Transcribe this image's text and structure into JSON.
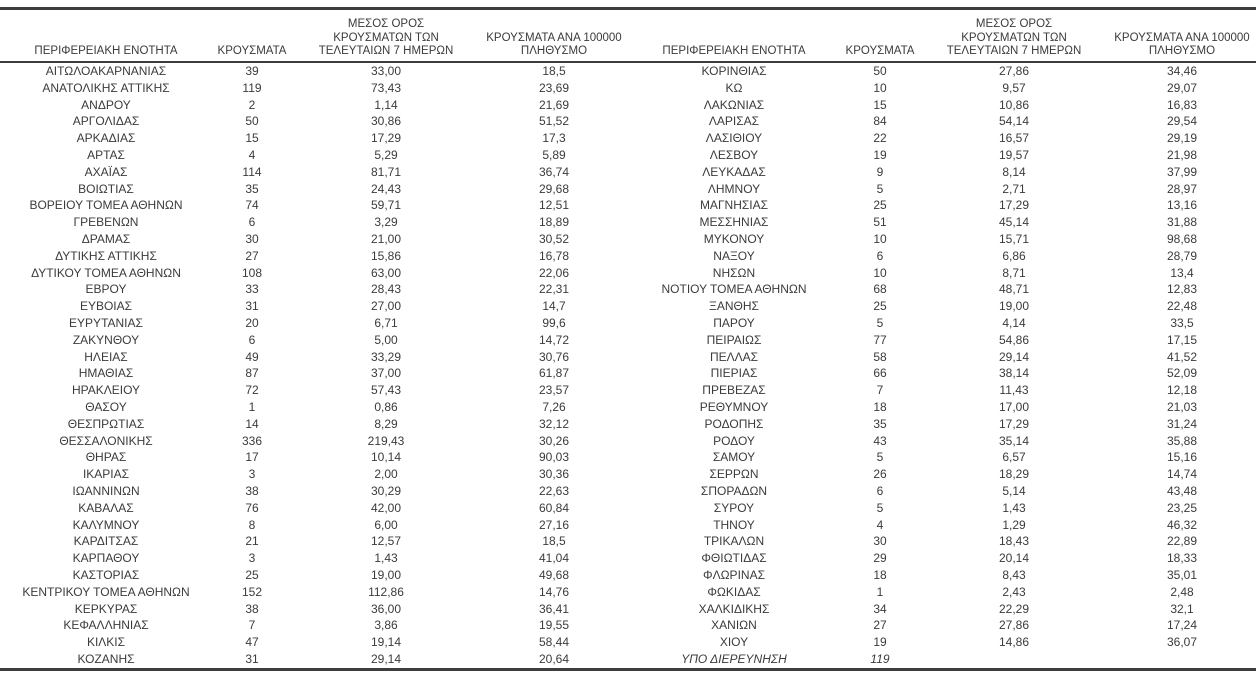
{
  "table": {
    "col_headers": [
      "ΠΕΡΙΦΕΡΕΙΑΚΗ ΕΝΟΤΗΤΑ",
      "ΚΡΟΥΣΜΑΤΑ",
      "ΜΕΣΟΣ ΟΡΟΣ\nΚΡΟΥΣΜΑΤΩΝ ΤΩΝ\nΤΕΛΕΥΤΑΙΩΝ 7 ΗΜΕΡΩΝ",
      "ΚΡΟΥΣΜΑΤΑ ΑΝΑ 100000\nΠΛΗΘΥΣΜΟ"
    ],
    "italic_row_label": "ΥΠΟ ΔΙΕΡΕΥΝΗΣΗ",
    "text_color": "#3b3b3b",
    "border_color": "#3d3d3d",
    "left_rows": [
      [
        "ΑΙΤΩΛΟΑΚΑΡΝΑΝΙΑΣ",
        "39",
        "33,00",
        "18,5"
      ],
      [
        "ΑΝΑΤΟΛΙΚΗΣ ΑΤΤΙΚΗΣ",
        "119",
        "73,43",
        "23,69"
      ],
      [
        "ΑΝΔΡΟΥ",
        "2",
        "1,14",
        "21,69"
      ],
      [
        "ΑΡΓΟΛΙΔΑΣ",
        "50",
        "30,86",
        "51,52"
      ],
      [
        "ΑΡΚΑΔΙΑΣ",
        "15",
        "17,29",
        "17,3"
      ],
      [
        "ΑΡΤΑΣ",
        "4",
        "5,29",
        "5,89"
      ],
      [
        "ΑΧΑΪΑΣ",
        "114",
        "81,71",
        "36,74"
      ],
      [
        "ΒΟΙΩΤΙΑΣ",
        "35",
        "24,43",
        "29,68"
      ],
      [
        "ΒΟΡΕΙΟΥ ΤΟΜΕΑ ΑΘΗΝΩΝ",
        "74",
        "59,71",
        "12,51"
      ],
      [
        "ΓΡΕΒΕΝΩΝ",
        "6",
        "3,29",
        "18,89"
      ],
      [
        "ΔΡΑΜΑΣ",
        "30",
        "21,00",
        "30,52"
      ],
      [
        "ΔΥΤΙΚΗΣ ΑΤΤΙΚΗΣ",
        "27",
        "15,86",
        "16,78"
      ],
      [
        "ΔΥΤΙΚΟΥ ΤΟΜΕΑ ΑΘΗΝΩΝ",
        "108",
        "63,00",
        "22,06"
      ],
      [
        "ΕΒΡΟΥ",
        "33",
        "28,43",
        "22,31"
      ],
      [
        "ΕΥΒΟΙΑΣ",
        "31",
        "27,00",
        "14,7"
      ],
      [
        "ΕΥΡΥΤΑΝΙΑΣ",
        "20",
        "6,71",
        "99,6"
      ],
      [
        "ΖΑΚΥΝΘΟΥ",
        "6",
        "5,00",
        "14,72"
      ],
      [
        "ΗΛΕΙΑΣ",
        "49",
        "33,29",
        "30,76"
      ],
      [
        "ΗΜΑΘΙΑΣ",
        "87",
        "37,00",
        "61,87"
      ],
      [
        "ΗΡΑΚΛΕΙΟΥ",
        "72",
        "57,43",
        "23,57"
      ],
      [
        "ΘΑΣΟΥ",
        "1",
        "0,86",
        "7,26"
      ],
      [
        "ΘΕΣΠΡΩΤΙΑΣ",
        "14",
        "8,29",
        "32,12"
      ],
      [
        "ΘΕΣΣΑΛΟΝΙΚΗΣ",
        "336",
        "219,43",
        "30,26"
      ],
      [
        "ΘΗΡΑΣ",
        "17",
        "10,14",
        "90,03"
      ],
      [
        "ΙΚΑΡΙΑΣ",
        "3",
        "2,00",
        "30,36"
      ],
      [
        "ΙΩΑΝΝΙΝΩΝ",
        "38",
        "30,29",
        "22,63"
      ],
      [
        "ΚΑΒΑΛΑΣ",
        "76",
        "42,00",
        "60,84"
      ],
      [
        "ΚΑΛΥΜΝΟΥ",
        "8",
        "6,00",
        "27,16"
      ],
      [
        "ΚΑΡΔΙΤΣΑΣ",
        "21",
        "12,57",
        "18,5"
      ],
      [
        "ΚΑΡΠΑΘΟΥ",
        "3",
        "1,43",
        "41,04"
      ],
      [
        "ΚΑΣΤΟΡΙΑΣ",
        "25",
        "19,00",
        "49,68"
      ],
      [
        "ΚΕΝΤΡΙΚΟΥ ΤΟΜΕΑ ΑΘΗΝΩΝ",
        "152",
        "112,86",
        "14,76"
      ],
      [
        "ΚΕΡΚΥΡΑΣ",
        "38",
        "36,00",
        "36,41"
      ],
      [
        "ΚΕΦΑΛΛΗΝΙΑΣ",
        "7",
        "3,86",
        "19,55"
      ],
      [
        "ΚΙΛΚΙΣ",
        "47",
        "19,14",
        "58,44"
      ],
      [
        "ΚΟΖΑΝΗΣ",
        "31",
        "29,14",
        "20,64"
      ]
    ],
    "right_rows": [
      [
        "ΚΟΡΙΝΘΙΑΣ",
        "50",
        "27,86",
        "34,46"
      ],
      [
        "ΚΩ",
        "10",
        "9,57",
        "29,07"
      ],
      [
        "ΛΑΚΩΝΙΑΣ",
        "15",
        "10,86",
        "16,83"
      ],
      [
        "ΛΑΡΙΣΑΣ",
        "84",
        "54,14",
        "29,54"
      ],
      [
        "ΛΑΣΙΘΙΟΥ",
        "22",
        "16,57",
        "29,19"
      ],
      [
        "ΛΕΣΒΟΥ",
        "19",
        "19,57",
        "21,98"
      ],
      [
        "ΛΕΥΚΑΔΑΣ",
        "9",
        "8,14",
        "37,99"
      ],
      [
        "ΛΗΜΝΟΥ",
        "5",
        "2,71",
        "28,97"
      ],
      [
        "ΜΑΓΝΗΣΙΑΣ",
        "25",
        "17,29",
        "13,16"
      ],
      [
        "ΜΕΣΣΗΝΙΑΣ",
        "51",
        "45,14",
        "31,88"
      ],
      [
        "ΜΥΚΟΝΟΥ",
        "10",
        "15,71",
        "98,68"
      ],
      [
        "ΝΑΞΟΥ",
        "6",
        "6,86",
        "28,79"
      ],
      [
        "ΝΗΣΩΝ",
        "10",
        "8,71",
        "13,4"
      ],
      [
        "ΝΟΤΙΟΥ ΤΟΜΕΑ ΑΘΗΝΩΝ",
        "68",
        "48,71",
        "12,83"
      ],
      [
        "ΞΑΝΘΗΣ",
        "25",
        "19,00",
        "22,48"
      ],
      [
        "ΠΑΡΟΥ",
        "5",
        "4,14",
        "33,5"
      ],
      [
        "ΠΕΙΡΑΙΩΣ",
        "77",
        "54,86",
        "17,15"
      ],
      [
        "ΠΕΛΛΑΣ",
        "58",
        "29,14",
        "41,52"
      ],
      [
        "ΠΙΕΡΙΑΣ",
        "66",
        "38,14",
        "52,09"
      ],
      [
        "ΠΡΕΒΕΖΑΣ",
        "7",
        "11,43",
        "12,18"
      ],
      [
        "ΡΕΘΥΜΝΟΥ",
        "18",
        "17,00",
        "21,03"
      ],
      [
        "ΡΟΔΟΠΗΣ",
        "35",
        "17,29",
        "31,24"
      ],
      [
        "ΡΟΔΟΥ",
        "43",
        "35,14",
        "35,88"
      ],
      [
        "ΣΑΜΟΥ",
        "5",
        "6,57",
        "15,16"
      ],
      [
        "ΣΕΡΡΩΝ",
        "26",
        "18,29",
        "14,74"
      ],
      [
        "ΣΠΟΡΑΔΩΝ",
        "6",
        "5,14",
        "43,48"
      ],
      [
        "ΣΥΡΟΥ",
        "5",
        "1,43",
        "23,25"
      ],
      [
        "ΤΗΝΟΥ",
        "4",
        "1,29",
        "46,32"
      ],
      [
        "ΤΡΙΚΑΛΩΝ",
        "30",
        "18,43",
        "22,89"
      ],
      [
        "ΦΘΙΩΤΙΔΑΣ",
        "29",
        "20,14",
        "18,33"
      ],
      [
        "ΦΛΩΡΙΝΑΣ",
        "18",
        "8,43",
        "35,01"
      ],
      [
        "ΦΩΚΙΔΑΣ",
        "1",
        "2,43",
        "2,48"
      ],
      [
        "ΧΑΛΚΙΔΙΚΗΣ",
        "34",
        "22,29",
        "32,1"
      ],
      [
        "ΧΑΝΙΩΝ",
        "27",
        "27,86",
        "17,24"
      ],
      [
        "ΧΙΟΥ",
        "19",
        "14,86",
        "36,07"
      ],
      [
        "ΥΠΟ ΔΙΕΡΕΥΝΗΣΗ",
        "119",
        "",
        ""
      ]
    ]
  }
}
